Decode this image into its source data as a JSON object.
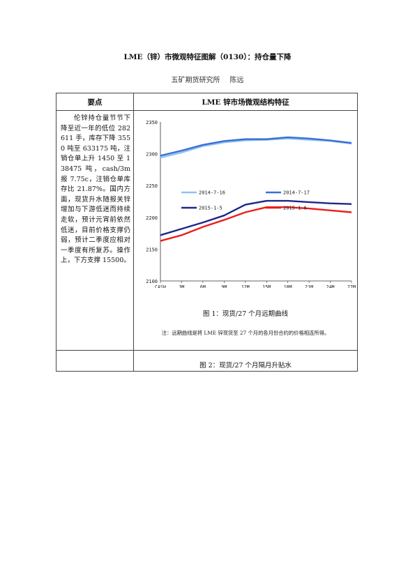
{
  "doc": {
    "title": "LME（锌）市微观特征图解（0130）：持仓量下降",
    "author_org": "五矿期货研究所",
    "author_name": "陈远"
  },
  "table": {
    "header_left": "要点",
    "header_right": "LME 锌市场微观结构特征",
    "left_text": "伦锌持仓量节节下降至近一年的低位 282611 手，库存下降 3550 吨至 633175 吨，注销仓单上升 1450 至 138475 吨，cash/3m 报 7.75c，注销仓单库存比 21.87%。国内方面，现货升水随报关锌增加与下游低迷而持续走软，预计元宵前依然低迷，目前价格支撑仍弱，预计二季度应相对一季度有所复苏。操作上，下方支撑 15500。",
    "caption1": "图 1：现货/27 个月远期曲线",
    "note": "注：远期曲线是将 LME 锌现货至 27 个月的各月份合约的价格相连所得。",
    "caption2": "图 2：现货/27 个月隔月升贴水"
  },
  "chart_data": {
    "type": "line",
    "x": [
      "CASH",
      "3M",
      "6M",
      "9M",
      "12M",
      "15M",
      "18M",
      "21M",
      "24M",
      "27M"
    ],
    "ylim": [
      2100,
      2350
    ],
    "yticks": [
      2100,
      2150,
      2200,
      2250,
      2300,
      2350
    ],
    "legend_placement": "inside, middle",
    "series": [
      {
        "name": "2014-7-16",
        "color": "#8ec3ee",
        "values": [
          2294,
          2302,
          2312,
          2318,
          2321,
          2322,
          2324,
          2322,
          2320,
          2316
        ]
      },
      {
        "name": "2014-7-17",
        "color": "#3b6fd6",
        "values": [
          2297,
          2305,
          2314,
          2320,
          2323,
          2323,
          2326,
          2324,
          2321,
          2317
        ]
      },
      {
        "name": "2015-1-5",
        "color": "#1c2788",
        "values": [
          2172,
          2182,
          2192,
          2203,
          2220,
          2226,
          2226,
          2224,
          2222,
          2221
        ]
      },
      {
        "name": "2015-1-6",
        "color": "#ee1c1c",
        "values": [
          2163,
          2172,
          2185,
          2196,
          2208,
          2216,
          2216,
          2214,
          2211,
          2208
        ]
      }
    ]
  }
}
